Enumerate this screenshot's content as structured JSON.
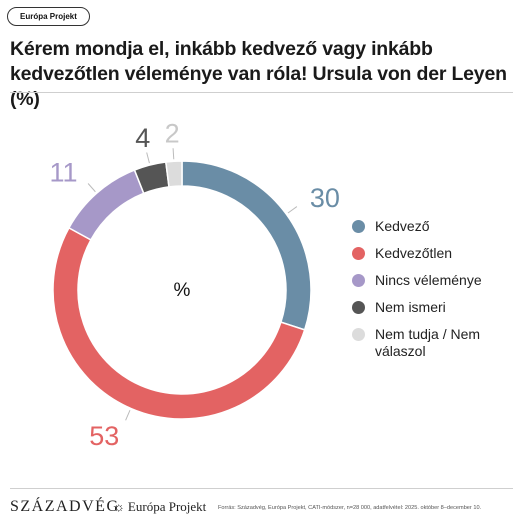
{
  "tag": "Európa Projekt",
  "title": "Kérem mondja el, inkább kedvező vagy inkább kedvezőtlen véleménye van róla! Ursula von der Leyen (%)",
  "chart_data": {
    "type": "pie",
    "donut": true,
    "center_label": "%",
    "categories": [
      "Kedvező",
      "Kedvezőtlen",
      "Nincs véleménye",
      "Nem ismeri",
      "Nem tudja / Nem válaszol"
    ],
    "values": [
      30,
      53,
      11,
      4,
      2
    ],
    "colors": [
      "#6a8da6",
      "#e36363",
      "#a698c8",
      "#555555",
      "#dcdcdc"
    ],
    "label_colors": [
      "#6a8da6",
      "#e36363",
      "#a698c8",
      "#555555",
      "#c8c8c8"
    ],
    "legend_position": "right"
  },
  "footer": {
    "logo_szazadveg": "SZÁZADVÉG",
    "logo_europa": "Európa Projekt",
    "logo_mark": "☼",
    "source": "Forrás: Századvég, Európa Projekt, CATI-módszer, n=28 000, adatfelvétel: 2025. október 8–december 10."
  }
}
